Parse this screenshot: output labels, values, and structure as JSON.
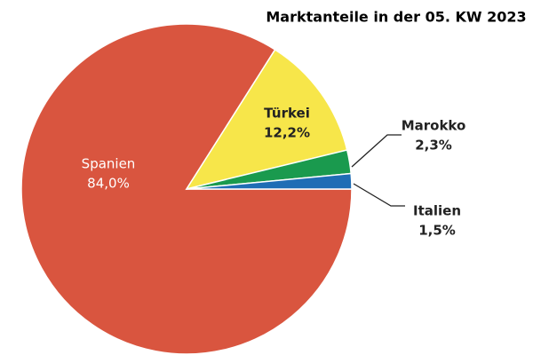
{
  "chart_data": {
    "type": "pie",
    "title": "Marktanteile in der 05. KW 2023",
    "categories": [
      "Spanien",
      "Türkei",
      "Marokko",
      "Italien"
    ],
    "values": [
      84.0,
      12.2,
      2.3,
      1.5
    ],
    "value_labels": [
      "84,0%",
      "12,2%",
      "2,3%",
      "1,5%"
    ],
    "colors": [
      "#d9553f",
      "#f7e64a",
      "#1a9a4e",
      "#1f6db5"
    ]
  }
}
